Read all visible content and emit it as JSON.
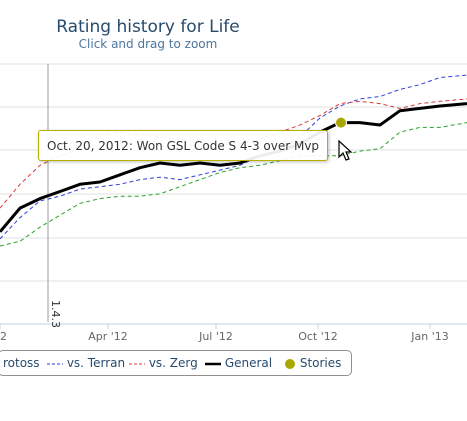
{
  "header": {
    "title": "Rating history for Life",
    "subtitle": "Click and drag to zoom"
  },
  "tooltip": {
    "text": "Oct. 20, 2012: Won GSL Code S 4-3 over Mvp"
  },
  "plot_band_label": "1.4.3",
  "legend": {
    "items": [
      {
        "label": "rotoss",
        "color": "#2f7ed8",
        "style": "dashed"
      },
      {
        "label": "vs. Terran",
        "color": "#2f3ed8",
        "style": "dashed"
      },
      {
        "label": "vs. Zerg",
        "color": "#d83a3a",
        "style": "dashed"
      },
      {
        "label": "General",
        "color": "#000000",
        "style": "solid"
      },
      {
        "label": "Stories",
        "color": "#a8a800",
        "style": "marker"
      }
    ]
  },
  "chart_data": {
    "type": "line",
    "title": "Rating history for Life",
    "subtitle": "Click and drag to zoom",
    "x_tick_labels": [
      "2",
      "Apr '12",
      "Jul '12",
      "Oct '12",
      "Jan '13"
    ],
    "series": [
      {
        "name": "General",
        "color": "#000000",
        "x": [
          0,
          20,
          40,
          60,
          80,
          100,
          120,
          140,
          160,
          180,
          200,
          220,
          240,
          260,
          280,
          300,
          320,
          340,
          360,
          380,
          400,
          420,
          440,
          467
        ],
        "y": [
          0.38,
          0.48,
          0.52,
          0.55,
          0.58,
          0.59,
          0.62,
          0.65,
          0.67,
          0.66,
          0.67,
          0.66,
          0.67,
          0.7,
          0.72,
          0.75,
          0.8,
          0.84,
          0.84,
          0.83,
          0.89,
          0.9,
          0.91,
          0.92
        ]
      },
      {
        "name": "vs. Terran",
        "color": "#2f3ed8",
        "x": [
          0,
          20,
          40,
          60,
          80,
          100,
          120,
          140,
          160,
          180,
          200,
          220,
          240,
          260,
          280,
          300,
          320,
          340,
          360,
          380,
          400,
          420,
          440,
          467
        ],
        "y": [
          0.35,
          0.44,
          0.51,
          0.53,
          0.56,
          0.57,
          0.58,
          0.6,
          0.61,
          0.6,
          0.62,
          0.64,
          0.66,
          0.7,
          0.73,
          0.78,
          0.86,
          0.91,
          0.94,
          0.95,
          0.98,
          1.0,
          1.03,
          1.04
        ]
      },
      {
        "name": "vs. Zerg",
        "color": "#d83a3a",
        "x": [
          0,
          20,
          40,
          60,
          80,
          100,
          120,
          140,
          160,
          180,
          200,
          220,
          240,
          260,
          280,
          300,
          320,
          340,
          360,
          380,
          400,
          420,
          440,
          467
        ],
        "y": [
          0.48,
          0.58,
          0.66,
          0.7,
          0.73,
          0.79,
          0.8,
          0.79,
          0.78,
          0.77,
          0.77,
          0.75,
          0.75,
          0.77,
          0.8,
          0.83,
          0.87,
          0.92,
          0.93,
          0.92,
          0.9,
          0.92,
          0.93,
          0.94
        ]
      },
      {
        "name": "rotoss",
        "color": "#2ca02c",
        "x": [
          0,
          20,
          40,
          60,
          80,
          100,
          120,
          140,
          160,
          180,
          200,
          220,
          240,
          260,
          280,
          300,
          320,
          340,
          360,
          380,
          400,
          420,
          440,
          467
        ],
        "y": [
          0.32,
          0.34,
          0.4,
          0.45,
          0.5,
          0.52,
          0.53,
          0.53,
          0.54,
          0.57,
          0.6,
          0.63,
          0.65,
          0.66,
          0.68,
          0.7,
          0.7,
          0.7,
          0.72,
          0.73,
          0.8,
          0.82,
          0.82,
          0.84
        ]
      }
    ],
    "stories": [
      {
        "x": 341,
        "y": 0.84,
        "text": "Oct. 20, 2012: Won GSL Code S 4-3 over Mvp"
      }
    ],
    "grid": true,
    "legend_position": "bottom"
  }
}
